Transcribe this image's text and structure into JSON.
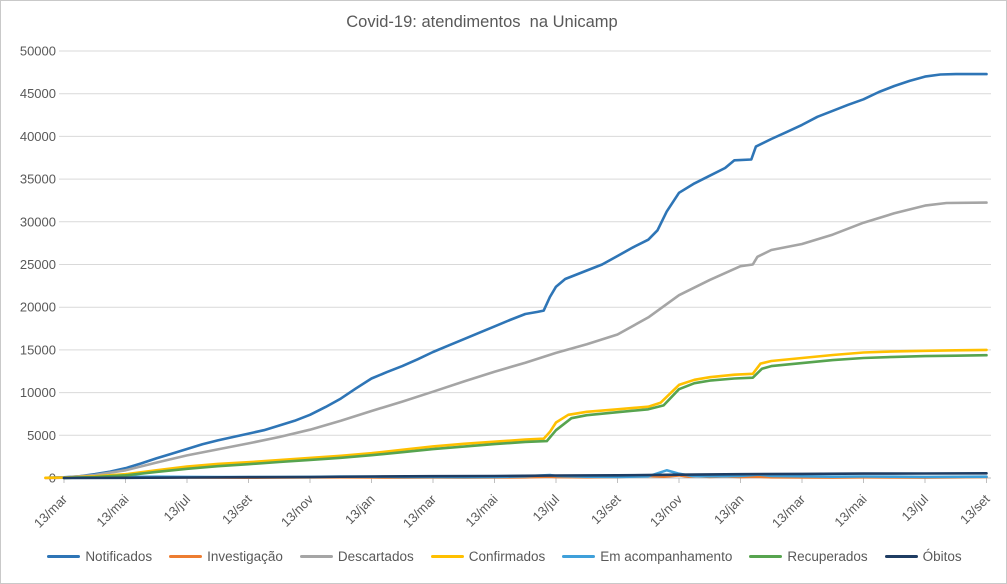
{
  "window": {
    "background": "#ffffff",
    "border_color": "#c9c9c9"
  },
  "chart_data": {
    "type": "line",
    "title": "Covid-19: atendimentos  na Unicamp",
    "title_color": "#595959",
    "label_color": "#595959",
    "grid": true,
    "grid_color": "#d9d9d9",
    "axis_color": "#bfbfbf",
    "legend_position": "bottom",
    "x_axis_note": "dates every 2 months from 13/mar/2020 to 13/set/2022, x stored as months since 13/mar/2020",
    "x_tick_labels": [
      "13/mar",
      "13/mai",
      "13/jul",
      "13/set",
      "13/nov",
      "13/jan",
      "13/mar",
      "13/mai",
      "13/jul",
      "13/set",
      "13/nov",
      "13/jan",
      "13/mar",
      "13/mai",
      "13/jul",
      "13/set"
    ],
    "x_tick_positions": [
      0,
      2,
      4,
      6,
      8,
      10,
      12,
      14,
      16,
      18,
      20,
      22,
      24,
      26,
      28,
      30
    ],
    "xlim": [
      -0.7,
      30.3
    ],
    "y_ticks": [
      0,
      5000,
      10000,
      15000,
      20000,
      25000,
      30000,
      35000,
      40000,
      45000,
      50000
    ],
    "ylim": [
      0,
      50000
    ],
    "series": [
      {
        "name": "Notificados",
        "color": "#2e75b6",
        "points": [
          [
            -0.5,
            30
          ],
          [
            0,
            80
          ],
          [
            0.5,
            200
          ],
          [
            1,
            450
          ],
          [
            1.5,
            750
          ],
          [
            2,
            1150
          ],
          [
            2.5,
            1700
          ],
          [
            3,
            2300
          ],
          [
            3.5,
            2850
          ],
          [
            4,
            3400
          ],
          [
            4.5,
            3950
          ],
          [
            5,
            4400
          ],
          [
            5.5,
            4800
          ],
          [
            6,
            5200
          ],
          [
            6.5,
            5600
          ],
          [
            7,
            6150
          ],
          [
            7.5,
            6700
          ],
          [
            8,
            7400
          ],
          [
            8.5,
            8300
          ],
          [
            9,
            9300
          ],
          [
            9.5,
            10500
          ],
          [
            10,
            11650
          ],
          [
            10.5,
            12400
          ],
          [
            11,
            13100
          ],
          [
            11.5,
            13900
          ],
          [
            12,
            14750
          ],
          [
            12.5,
            15500
          ],
          [
            13,
            16250
          ],
          [
            13.5,
            17000
          ],
          [
            14,
            17750
          ],
          [
            14.5,
            18500
          ],
          [
            15,
            19200
          ],
          [
            15.4,
            19450
          ],
          [
            15.6,
            19600
          ],
          [
            15.8,
            21200
          ],
          [
            16,
            22400
          ],
          [
            16.3,
            23300
          ],
          [
            17,
            24300
          ],
          [
            17.5,
            25000
          ],
          [
            18,
            26000
          ],
          [
            18.5,
            27000
          ],
          [
            19,
            27900
          ],
          [
            19.3,
            29000
          ],
          [
            19.6,
            31200
          ],
          [
            20,
            33400
          ],
          [
            20.5,
            34500
          ],
          [
            21,
            35400
          ],
          [
            21.5,
            36300
          ],
          [
            21.8,
            37200
          ],
          [
            22.35,
            37300
          ],
          [
            22.5,
            38800
          ],
          [
            23,
            39700
          ],
          [
            23.5,
            40500
          ],
          [
            24,
            41350
          ],
          [
            24.5,
            42300
          ],
          [
            25,
            43000
          ],
          [
            25.5,
            43700
          ],
          [
            26,
            44350
          ],
          [
            26.5,
            45200
          ],
          [
            27,
            45900
          ],
          [
            27.5,
            46500
          ],
          [
            28,
            47000
          ],
          [
            28.5,
            47250
          ],
          [
            29,
            47300
          ],
          [
            30,
            47300
          ]
        ]
      },
      {
        "name": "Investigação",
        "color": "#ed7d31",
        "points": [
          [
            -0.6,
            10
          ],
          [
            0,
            40
          ],
          [
            1,
            60
          ],
          [
            2,
            50
          ],
          [
            3,
            40
          ],
          [
            4,
            60
          ],
          [
            5,
            50
          ],
          [
            6,
            40
          ],
          [
            7,
            50
          ],
          [
            8,
            60
          ],
          [
            9,
            80
          ],
          [
            10,
            60
          ],
          [
            11,
            50
          ],
          [
            12,
            60
          ],
          [
            13,
            50
          ],
          [
            14,
            60
          ],
          [
            15,
            80
          ],
          [
            15.8,
            150
          ],
          [
            16,
            100
          ],
          [
            17,
            80
          ],
          [
            18,
            100
          ],
          [
            19,
            250
          ],
          [
            19.5,
            150
          ],
          [
            20,
            300
          ],
          [
            20.3,
            150
          ],
          [
            20.6,
            250
          ],
          [
            21,
            120
          ],
          [
            21.5,
            200
          ],
          [
            22,
            100
          ],
          [
            22.5,
            150
          ],
          [
            23,
            80
          ],
          [
            24,
            60
          ],
          [
            25,
            50
          ],
          [
            26,
            80
          ],
          [
            27,
            60
          ],
          [
            28,
            50
          ],
          [
            29,
            80
          ],
          [
            30,
            120
          ]
        ]
      },
      {
        "name": "Descartados",
        "color": "#a5a5a5",
        "points": [
          [
            -0.3,
            20
          ],
          [
            0,
            50
          ],
          [
            1,
            350
          ],
          [
            2,
            900
          ],
          [
            3,
            1800
          ],
          [
            4,
            2650
          ],
          [
            5,
            3350
          ],
          [
            6,
            4050
          ],
          [
            7,
            4800
          ],
          [
            8,
            5650
          ],
          [
            9,
            6700
          ],
          [
            10,
            7850
          ],
          [
            11,
            8950
          ],
          [
            12,
            10100
          ],
          [
            13,
            11300
          ],
          [
            14,
            12450
          ],
          [
            15,
            13500
          ],
          [
            16,
            14650
          ],
          [
            17,
            15650
          ],
          [
            18,
            16800
          ],
          [
            19,
            18800
          ],
          [
            20,
            21400
          ],
          [
            21,
            23200
          ],
          [
            22,
            24800
          ],
          [
            22.4,
            25000
          ],
          [
            22.55,
            25900
          ],
          [
            23,
            26700
          ],
          [
            24,
            27400
          ],
          [
            25,
            28500
          ],
          [
            26,
            29900
          ],
          [
            27,
            31000
          ],
          [
            28,
            31900
          ],
          [
            28.7,
            32200
          ],
          [
            30,
            32250
          ]
        ]
      },
      {
        "name": "Confirmados",
        "color": "#ffc000",
        "points": [
          [
            -0.6,
            20
          ],
          [
            0,
            60
          ],
          [
            1,
            200
          ],
          [
            2,
            450
          ],
          [
            3,
            900
          ],
          [
            4,
            1350
          ],
          [
            5,
            1650
          ],
          [
            6,
            1850
          ],
          [
            7,
            2100
          ],
          [
            8,
            2350
          ],
          [
            9,
            2600
          ],
          [
            10,
            2900
          ],
          [
            11,
            3300
          ],
          [
            12,
            3700
          ],
          [
            13,
            4000
          ],
          [
            14,
            4250
          ],
          [
            15,
            4500
          ],
          [
            15.6,
            4600
          ],
          [
            15.8,
            5400
          ],
          [
            16,
            6500
          ],
          [
            16.4,
            7400
          ],
          [
            17,
            7750
          ],
          [
            18,
            8050
          ],
          [
            19,
            8350
          ],
          [
            19.4,
            8800
          ],
          [
            20,
            10900
          ],
          [
            20.5,
            11500
          ],
          [
            21,
            11800
          ],
          [
            21.8,
            12100
          ],
          [
            22.4,
            12200
          ],
          [
            22.65,
            13400
          ],
          [
            23,
            13700
          ],
          [
            24,
            14050
          ],
          [
            25,
            14400
          ],
          [
            26,
            14700
          ],
          [
            27,
            14820
          ],
          [
            28,
            14900
          ],
          [
            29,
            14950
          ],
          [
            30,
            15000
          ]
        ]
      },
      {
        "name": "Em acompanhamento",
        "color": "#3fa0da",
        "points": [
          [
            0,
            20
          ],
          [
            1,
            80
          ],
          [
            2,
            120
          ],
          [
            3,
            150
          ],
          [
            4,
            130
          ],
          [
            5,
            120
          ],
          [
            6,
            110
          ],
          [
            7,
            120
          ],
          [
            8,
            130
          ],
          [
            9,
            160
          ],
          [
            10,
            150
          ],
          [
            11,
            130
          ],
          [
            12,
            120
          ],
          [
            13,
            110
          ],
          [
            14,
            120
          ],
          [
            15,
            200
          ],
          [
            15.8,
            350
          ],
          [
            16,
            250
          ],
          [
            17,
            150
          ],
          [
            18,
            130
          ],
          [
            19,
            200
          ],
          [
            19.6,
            900
          ],
          [
            20,
            500
          ],
          [
            20.4,
            250
          ],
          [
            21,
            200
          ],
          [
            22,
            250
          ],
          [
            22.6,
            400
          ],
          [
            23,
            250
          ],
          [
            24,
            200
          ],
          [
            25,
            150
          ],
          [
            26,
            180
          ],
          [
            27,
            150
          ],
          [
            28,
            130
          ],
          [
            29,
            140
          ],
          [
            30,
            150
          ]
        ]
      },
      {
        "name": "Recuperados",
        "color": "#57a44f",
        "points": [
          [
            0,
            10
          ],
          [
            1,
            100
          ],
          [
            2,
            320
          ],
          [
            3,
            720
          ],
          [
            4,
            1080
          ],
          [
            5,
            1380
          ],
          [
            6,
            1620
          ],
          [
            7,
            1870
          ],
          [
            8,
            2120
          ],
          [
            9,
            2370
          ],
          [
            10,
            2670
          ],
          [
            11,
            3020
          ],
          [
            12,
            3380
          ],
          [
            13,
            3680
          ],
          [
            14,
            3970
          ],
          [
            15,
            4230
          ],
          [
            15.7,
            4320
          ],
          [
            16,
            5600
          ],
          [
            16.5,
            7000
          ],
          [
            17,
            7350
          ],
          [
            18,
            7700
          ],
          [
            19,
            8050
          ],
          [
            19.5,
            8500
          ],
          [
            20,
            10400
          ],
          [
            20.5,
            11100
          ],
          [
            21,
            11400
          ],
          [
            21.8,
            11650
          ],
          [
            22.4,
            11750
          ],
          [
            22.7,
            12800
          ],
          [
            23,
            13100
          ],
          [
            24,
            13450
          ],
          [
            25,
            13800
          ],
          [
            26,
            14050
          ],
          [
            27,
            14180
          ],
          [
            28,
            14270
          ],
          [
            29,
            14320
          ],
          [
            30,
            14380
          ]
        ]
      },
      {
        "name": "Óbitos",
        "color": "#1f3d63",
        "points": [
          [
            0,
            5
          ],
          [
            2,
            25
          ],
          [
            4,
            60
          ],
          [
            6,
            90
          ],
          [
            8,
            120
          ],
          [
            10,
            170
          ],
          [
            12,
            210
          ],
          [
            14,
            240
          ],
          [
            16,
            290
          ],
          [
            18,
            320
          ],
          [
            20,
            390
          ],
          [
            22,
            440
          ],
          [
            24,
            480
          ],
          [
            26,
            510
          ],
          [
            28,
            530
          ],
          [
            30,
            550
          ]
        ]
      }
    ],
    "legend": [
      "Notificados",
      "Investigação",
      "Descartados",
      "Confirmados",
      "Em acompanhamento",
      "Recuperados",
      "Óbitos"
    ]
  }
}
